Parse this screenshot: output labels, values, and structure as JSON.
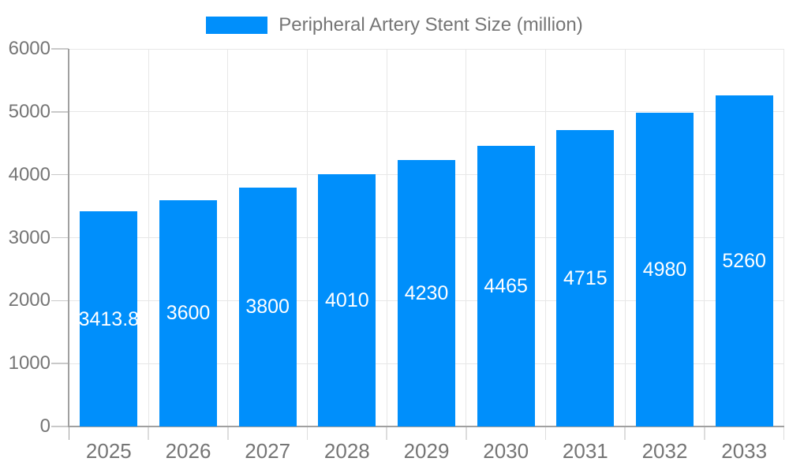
{
  "legend": {
    "items": [
      {
        "label": "Peripheral Artery Stent Size (million)",
        "color": "#008FFB"
      }
    ]
  },
  "chart_data": {
    "type": "bar",
    "title": "Peripheral Artery Stent Size (million)",
    "categories": [
      "2025",
      "2026",
      "2027",
      "2028",
      "2029",
      "2030",
      "2031",
      "2032",
      "2033"
    ],
    "series": [
      {
        "name": "Peripheral Artery Stent Size (million)",
        "values": [
          3413.8,
          3600,
          3800,
          4010,
          4230,
          4465,
          4715,
          4980,
          5260
        ],
        "data_labels": [
          "3413.8",
          "3600",
          "3800",
          "4010",
          "4230",
          "4465",
          "4715",
          "4980",
          "5260"
        ]
      }
    ],
    "xlabel": "",
    "ylabel": "",
    "ylim": [
      0,
      6000
    ],
    "yticks": [
      0,
      1000,
      2000,
      3000,
      4000,
      5000,
      6000
    ],
    "grid": true,
    "legend_position": "top",
    "colors": {
      "bar": "#008FFB",
      "axis_label": "#757575",
      "legend_label": "#757575",
      "gridline": "#e7e7e7",
      "axis_line": "#a0a0a0",
      "y_tick": "#c9c9c9",
      "x_tick": "#dddddd",
      "value_label": "#ffffff",
      "background": "#ffffff"
    }
  }
}
